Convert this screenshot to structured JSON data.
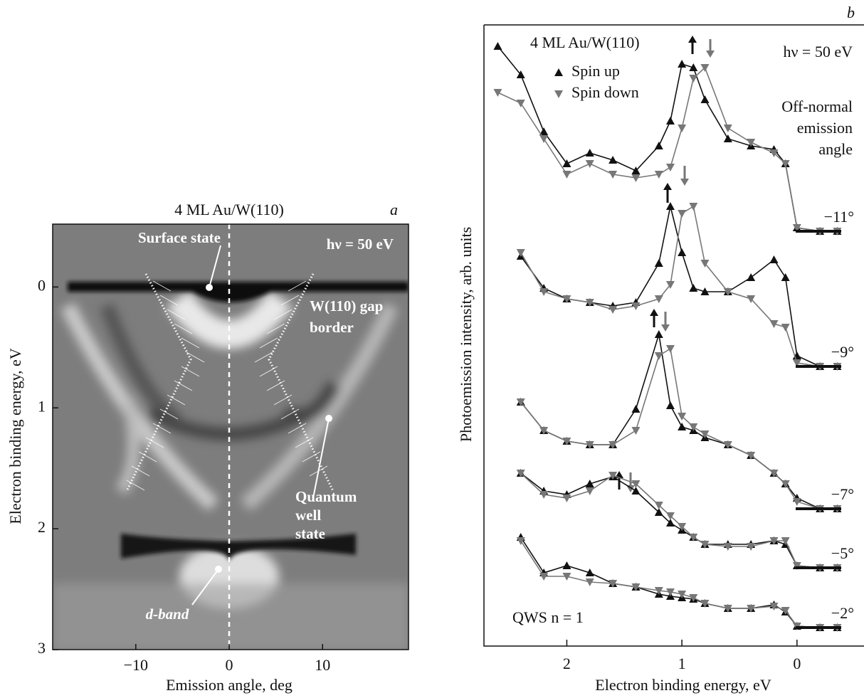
{
  "chart_data": [
    {
      "type": "intensity-map",
      "panel": "a",
      "title": "4 ML Au/W(110)",
      "xlabel": "Emission angle, deg",
      "ylabel": "Electron binding energy, eV",
      "xlim": [
        -18.9,
        19.2
      ],
      "ylim": [
        -0.52,
        3
      ],
      "xticks": [
        {
          "value": -10,
          "label": "−10"
        },
        0,
        10
      ],
      "yticks": [
        0,
        1,
        2,
        3
      ],
      "annotations": {
        "photon": "hν = 50 eV",
        "surface": "Surface state",
        "gap": [
          "W(110) gap",
          "border"
        ],
        "qws": [
          "Quantum",
          "well",
          "state"
        ],
        "dband": "d-band"
      }
    },
    {
      "type": "line",
      "panel": "b",
      "xlabel": "Electron binding energy, eV",
      "ylabel": "Photoemission intensity, arb. units",
      "xlim": [
        2.72,
        -0.57
      ],
      "ylim": [
        0,
        87.3
      ],
      "xticks": [
        2,
        1,
        0
      ],
      "sample": "4 ML Au/W(110)",
      "photon": "hν = 50 eV",
      "angle_title": [
        "Off-normal",
        "emission",
        "angle"
      ],
      "qws": "QWS  n = 1",
      "legend": [
        {
          "name": "Spin up",
          "color": "#111111",
          "marker": "up"
        },
        {
          "name": "Spin down",
          "color": "#777777",
          "marker": "down"
        }
      ],
      "x": [
        2.6,
        2.4,
        2.2,
        2.0,
        1.8,
        1.6,
        1.4,
        1.2,
        1.1,
        1.0,
        0.9,
        0.8,
        0.6,
        0.4,
        0.2,
        0.1,
        0.0,
        -0.2,
        -0.35
      ],
      "curves": [
        {
          "label": "−11°",
          "up": [
            84.3,
            80.3,
            72.3,
            67.8,
            69.3,
            68.3,
            66.8,
            70.3,
            73.8,
            81.8,
            81.3,
            76.8,
            71.3,
            70.3,
            69.8,
            67.8,
            58.8,
            58.3,
            58.3
          ],
          "down": [
            77.8,
            76.3,
            71.3,
            66.3,
            67.8,
            66.3,
            65.8,
            66.3,
            67.3,
            72.8,
            79.8,
            81.3,
            72.8,
            70.8,
            69.3,
            67.8,
            58.8,
            58.3,
            58.3
          ]
        },
        {
          "label": "−9°",
          "up": [
            null,
            54.8,
            50.3,
            48.8,
            48.3,
            47.8,
            48.3,
            53.8,
            61.8,
            55.3,
            50.3,
            49.8,
            49.8,
            51.8,
            54.3,
            51.8,
            40.8,
            39.3,
            39.3
          ],
          "down": [
            null,
            55.3,
            49.8,
            48.8,
            48.3,
            47.3,
            47.8,
            48.8,
            50.8,
            60.8,
            61.8,
            53.8,
            49.8,
            48.8,
            45.3,
            44.8,
            39.8,
            39.3,
            39.3
          ]
        },
        {
          "label": "−7°",
          "up": [
            null,
            34.3,
            30.3,
            28.8,
            28.3,
            28.3,
            33.3,
            43.8,
            33.8,
            30.8,
            30.3,
            29.3,
            28.3,
            26.8,
            24.3,
            22.8,
            20.8,
            19.3,
            19.3
          ],
          "down": [
            null,
            34.3,
            30.3,
            28.8,
            28.3,
            28.3,
            30.3,
            40.8,
            41.8,
            32.3,
            30.8,
            29.8,
            28.3,
            26.8,
            24.3,
            22.8,
            20.3,
            19.3,
            19.3
          ]
        },
        {
          "label": "−5°",
          "up": [
            null,
            24.3,
            21.8,
            21.3,
            22.8,
            23.8,
            21.8,
            18.8,
            17.3,
            16.3,
            15.3,
            14.3,
            14.3,
            14.3,
            14.8,
            14.3,
            11.3,
            11.0,
            11.0
          ],
          "down": [
            null,
            24.3,
            21.3,
            20.8,
            21.8,
            24.0,
            22.8,
            19.8,
            18.3,
            16.8,
            15.3,
            14.3,
            14.0,
            14.0,
            14.8,
            14.8,
            11.3,
            11.0,
            11.0
          ]
        },
        {
          "label": "−2°",
          "up": [
            null,
            15.3,
            10.3,
            11.3,
            10.3,
            8.8,
            8.3,
            7.3,
            7.0,
            6.8,
            6.6,
            6.0,
            5.3,
            5.3,
            5.8,
            4.8,
            2.8,
            2.6,
            2.6
          ],
          "down": [
            null,
            14.8,
            9.8,
            9.8,
            9.0,
            8.8,
            8.3,
            7.8,
            7.6,
            7.3,
            6.8,
            6.0,
            5.3,
            5.3,
            5.6,
            5.0,
            2.8,
            2.6,
            2.6
          ]
        }
      ]
    }
  ]
}
